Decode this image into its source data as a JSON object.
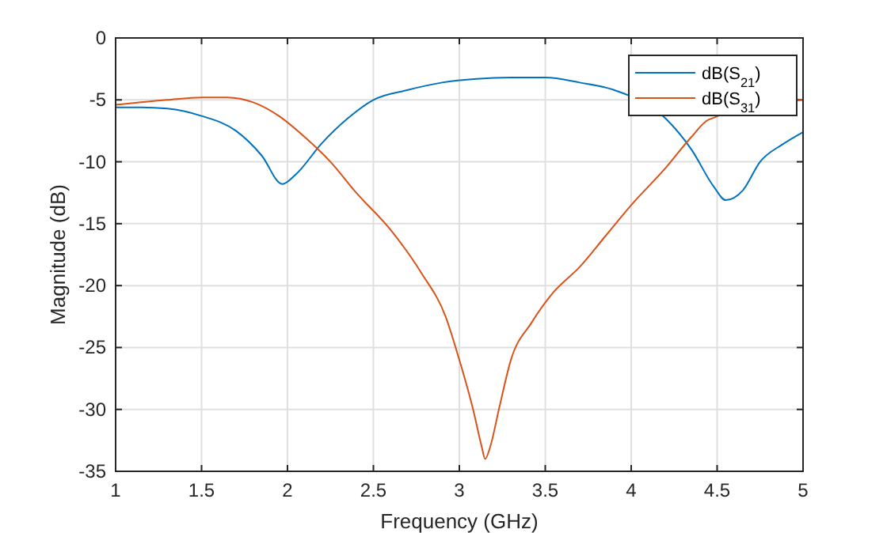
{
  "chart_data": {
    "type": "line",
    "xlabel": "Frequency (GHz)",
    "ylabel": "Magnitude (dB)",
    "xlim": [
      1,
      5
    ],
    "ylim": [
      -35,
      0
    ],
    "xticks": [
      1,
      1.5,
      2,
      2.5,
      3,
      3.5,
      4,
      4.5,
      5
    ],
    "yticks": [
      -35,
      -30,
      -25,
      -20,
      -15,
      -10,
      -5,
      0
    ],
    "grid": true,
    "legend": "top right",
    "line_style": "solid",
    "marker": "none",
    "series": [
      {
        "name": "dB(S$_{21}$)",
        "color": "#0072bd",
        "x": [
          1,
          1.15,
          1.3,
          1.5,
          1.7,
          1.85,
          1.97,
          2.05,
          2.2,
          2.35,
          2.5,
          2.7,
          2.9,
          3.1,
          3.3,
          3.5,
          3.7,
          3.9,
          4.2,
          4.35,
          4.48,
          4.55,
          4.65,
          4.75,
          4.88,
          5
        ],
        "values": [
          -5.6,
          -5.6,
          -5.7,
          -6.3,
          -7.5,
          -9.5,
          -11.8,
          -11,
          -8.5,
          -6.5,
          -5,
          -4.2,
          -3.6,
          -3.3,
          -3.2,
          -3.2,
          -3.6,
          -4.2,
          -6.5,
          -9,
          -12,
          -13.1,
          -12.3,
          -10,
          -8.6,
          -7.6
        ]
      },
      {
        "name": "dB(S$_{31}$)",
        "color": "#d95319",
        "x": [
          1,
          1.3,
          1.5,
          1.65,
          1.8,
          1.95,
          2.1,
          2.25,
          2.4,
          2.6,
          2.78,
          2.92,
          3,
          3.08,
          3.13,
          3.15,
          3.18,
          3.23,
          3.3,
          3.42,
          3.55,
          3.7,
          3.85,
          4,
          4.2,
          4.35,
          4.45,
          5
        ],
        "values": [
          -5.4,
          -5,
          -4.8,
          -4.8,
          -5.2,
          -6.3,
          -8,
          -10,
          -12.5,
          -15.5,
          -19,
          -22.5,
          -26,
          -30,
          -33,
          -34,
          -33,
          -30,
          -26,
          -23,
          -20.5,
          -18.5,
          -16,
          -13.5,
          -10.5,
          -8,
          -6.6,
          -5
        ]
      }
    ]
  }
}
